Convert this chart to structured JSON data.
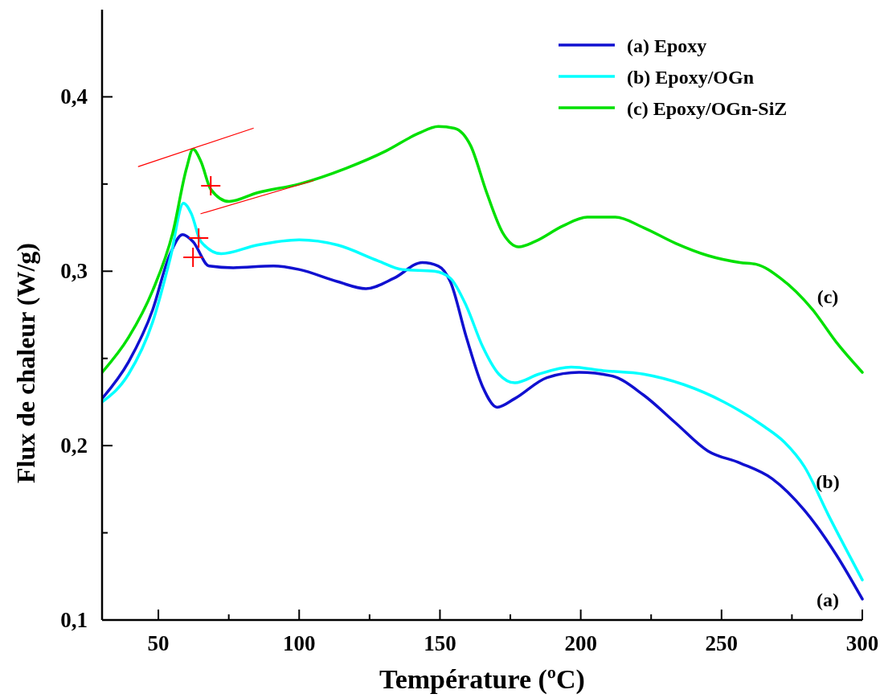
{
  "chart_data": {
    "type": "line",
    "xlabel": "Température (ºC)",
    "ylabel": "Flux de chaleur (W/g)",
    "xlim": [
      30,
      300
    ],
    "xticks": [
      {
        "value": 50,
        "label": "50"
      },
      {
        "value": 75,
        "label": null
      },
      {
        "value": 100,
        "label": "100"
      },
      {
        "value": 125,
        "label": null
      },
      {
        "value": 150,
        "label": "150"
      },
      {
        "value": 175,
        "label": null
      },
      {
        "value": 200,
        "label": "200"
      },
      {
        "value": 225,
        "label": null
      },
      {
        "value": 250,
        "label": "250"
      },
      {
        "value": 275,
        "label": null
      },
      {
        "value": 300,
        "label": "300"
      }
    ],
    "ylim": [
      0.1,
      0.45
    ],
    "yticks": [
      {
        "value": 0.1,
        "label": "0,1"
      },
      {
        "value": 0.15,
        "label": null
      },
      {
        "value": 0.2,
        "label": "0,2"
      },
      {
        "value": 0.25,
        "label": null
      },
      {
        "value": 0.3,
        "label": "0,3"
      },
      {
        "value": 0.35,
        "label": null
      },
      {
        "value": 0.4,
        "label": "0,4"
      }
    ],
    "grid": false,
    "legend": "top right",
    "series": [
      {
        "name": "(a) Epoxy",
        "color": "#1010d0",
        "x": [
          30,
          39.4,
          48,
          53.7,
          58.6,
          62.3,
          68,
          76.6,
          90.9,
          100,
          113.7,
          123.7,
          133.7,
          143.7,
          149.4,
          153.7,
          159.4,
          165.1,
          170.3,
          176.6,
          188,
          199.4,
          210.9,
          222.3,
          233.7,
          245.1,
          256.6,
          268,
          279.4,
          290.9,
          300
        ],
        "values": [
          0.227,
          0.248,
          0.278,
          0.308,
          0.321,
          0.317,
          0.303,
          0.302,
          0.303,
          0.301,
          0.294,
          0.29,
          0.296,
          0.305,
          0.303,
          0.294,
          0.262,
          0.234,
          0.222,
          0.227,
          0.239,
          0.242,
          0.24,
          0.229,
          0.213,
          0.197,
          0.19,
          0.181,
          0.163,
          0.137,
          0.112
        ]
      },
      {
        "name": "(b) Epoxy/OGn",
        "color": "#00ffff",
        "x": [
          30,
          39.4,
          48,
          54.3,
          58.9,
          61.7,
          65.1,
          72.3,
          85.1,
          100,
          113.7,
          128,
          136.6,
          148,
          153.7,
          159.4,
          165.1,
          170.9,
          176.6,
          185.1,
          196.6,
          208,
          222.3,
          236.6,
          250.9,
          265.1,
          272.3,
          279.4,
          288,
          300
        ],
        "values": [
          0.225,
          0.241,
          0.271,
          0.308,
          0.339,
          0.333,
          0.317,
          0.31,
          0.315,
          0.318,
          0.315,
          0.306,
          0.301,
          0.3,
          0.296,
          0.28,
          0.257,
          0.241,
          0.236,
          0.241,
          0.245,
          0.243,
          0.241,
          0.235,
          0.225,
          0.211,
          0.202,
          0.188,
          0.16,
          0.123
        ]
      },
      {
        "name": "(c) Epoxy/OGn-SiZ",
        "color": "#00e000",
        "x": [
          30,
          39.4,
          48,
          55.1,
          60,
          62.3,
          65.1,
          68.6,
          75.1,
          85.1,
          100,
          116.6,
          130.9,
          142.3,
          149.4,
          155.1,
          160.9,
          166.6,
          172.3,
          178,
          183.7,
          193.7,
          202.3,
          212.3,
          222.3,
          233.7,
          245.1,
          256.6,
          262.3,
          270.9,
          282.3,
          290.9,
          300
        ],
        "values": [
          0.242,
          0.262,
          0.289,
          0.322,
          0.359,
          0.37,
          0.363,
          0.347,
          0.34,
          0.345,
          0.35,
          0.359,
          0.369,
          0.379,
          0.383,
          0.382,
          0.372,
          0.345,
          0.322,
          0.314,
          0.317,
          0.326,
          0.331,
          0.331,
          0.325,
          0.316,
          0.309,
          0.305,
          0.304,
          0.296,
          0.278,
          0.259,
          0.242
        ]
      },
      {
        "type": "line",
        "color": "#ff0000",
        "x": [
          42.9,
          83.7
        ],
        "values": [
          0.36,
          0.382
        ]
      },
      {
        "type": "line",
        "color": "#ff0000",
        "x": [
          65.1,
          105.1
        ],
        "values": [
          0.333,
          0.352
        ]
      },
      {
        "type": "scatter",
        "marker": "cross",
        "color": "#ff0000",
        "x": [
          68.6,
          64.3,
          62.3
        ],
        "values": [
          0.349,
          0.319,
          0.308
        ]
      }
    ],
    "annotations": [
      "(c)",
      "(b)",
      "(a)"
    ]
  }
}
